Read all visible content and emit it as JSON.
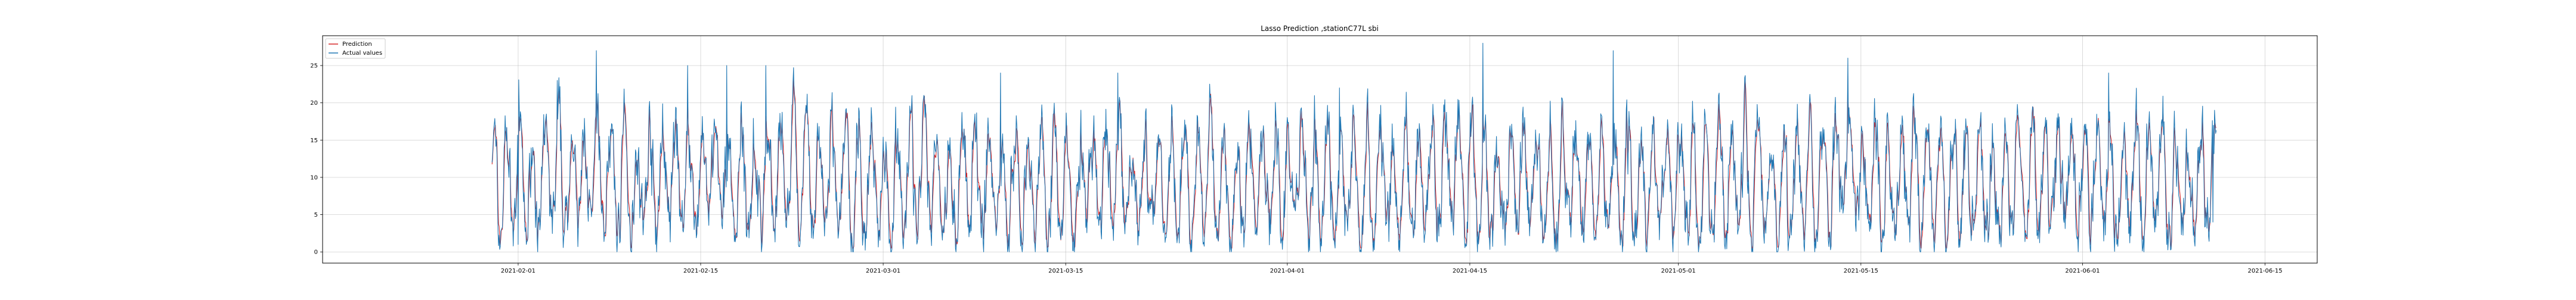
{
  "chart_data": {
    "type": "line",
    "title": "Lasso Prediction ,stationC77L sbi",
    "xlabel": "",
    "ylabel": "",
    "xlim": [
      "2021-01-17",
      "2021-06-19"
    ],
    "ylim": [
      -1.5,
      29
    ],
    "grid": true,
    "legend_position": "upper-left",
    "x_ticks": [
      "2021-02-01",
      "2021-02-15",
      "2021-03-01",
      "2021-03-15",
      "2021-04-01",
      "2021-04-15",
      "2021-05-01",
      "2021-05-15",
      "2021-06-01",
      "2021-06-15"
    ],
    "y_ticks": [
      0,
      5,
      10,
      15,
      20,
      25
    ],
    "x_range": [
      "2021-01-30",
      "2021-06-11"
    ],
    "series": [
      {
        "name": "Prediction",
        "color": "#d62728"
      },
      {
        "name": "Actual values",
        "color": "#1f77b4"
      }
    ],
    "sample_points_actual": [
      {
        "x": "2021-01-30",
        "y": 12
      },
      {
        "x": "2021-02-01",
        "y": 1
      },
      {
        "x": "2021-02-04",
        "y": 23
      },
      {
        "x": "2021-02-07",
        "y": 27
      },
      {
        "x": "2021-02-14",
        "y": 25
      },
      {
        "x": "2021-02-17",
        "y": 25
      },
      {
        "x": "2021-02-20",
        "y": 25
      },
      {
        "x": "2021-03-10",
        "y": 24
      },
      {
        "x": "2021-03-19",
        "y": 24
      },
      {
        "x": "2021-04-05",
        "y": 22
      },
      {
        "x": "2021-04-16",
        "y": 28
      },
      {
        "x": "2021-04-26",
        "y": 27
      },
      {
        "x": "2021-05-14",
        "y": 26
      },
      {
        "x": "2021-06-03",
        "y": 24
      },
      {
        "x": "2021-06-11",
        "y": 4
      }
    ]
  }
}
